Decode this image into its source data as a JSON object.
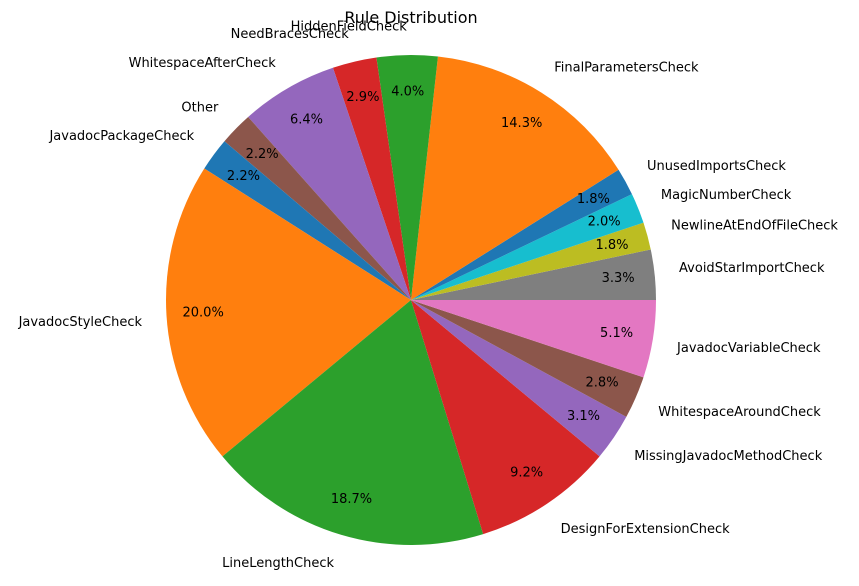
{
  "chart_data": {
    "type": "pie",
    "title": "Rule Distribution",
    "start_angle_deg": 0,
    "direction": "counterclockwise",
    "autopct_format": "{p:.1f}%",
    "slices": [
      {
        "label": "AvoidStarImportCheck",
        "value": 3.3,
        "color": "#7f7f7f"
      },
      {
        "label": "NewlineAtEndOfFileCheck",
        "value": 1.8,
        "color": "#bcbd22"
      },
      {
        "label": "MagicNumberCheck",
        "value": 2.0,
        "color": "#17becf"
      },
      {
        "label": "UnusedImportsCheck",
        "value": 1.8,
        "color": "#1f77b4"
      },
      {
        "label": "FinalParametersCheck",
        "value": 14.3,
        "color": "#ff7f0e"
      },
      {
        "label": "HiddenFieldCheck",
        "value": 4.0,
        "color": "#2ca02c"
      },
      {
        "label": "NeedBracesCheck",
        "value": 2.9,
        "color": "#d62728"
      },
      {
        "label": "WhitespaceAfterCheck",
        "value": 6.4,
        "color": "#9467bd"
      },
      {
        "label": "Other",
        "value": 2.2,
        "color": "#8c564b"
      },
      {
        "label": "JavadocPackageCheck",
        "value": 2.2,
        "color": "#1f77b4"
      },
      {
        "label": "JavadocStyleCheck",
        "value": 20.0,
        "color": "#ff7f0e"
      },
      {
        "label": "LineLengthCheck",
        "value": 18.7,
        "color": "#2ca02c"
      },
      {
        "label": "DesignForExtensionCheck",
        "value": 9.2,
        "color": "#d62728"
      },
      {
        "label": "MissingJavadocMethodCheck",
        "value": 3.1,
        "color": "#9467bd"
      },
      {
        "label": "WhitespaceAroundCheck",
        "value": 2.8,
        "color": "#8c564b"
      },
      {
        "label": "JavadocVariableCheck",
        "value": 5.1,
        "color": "#e377c2"
      }
    ]
  }
}
